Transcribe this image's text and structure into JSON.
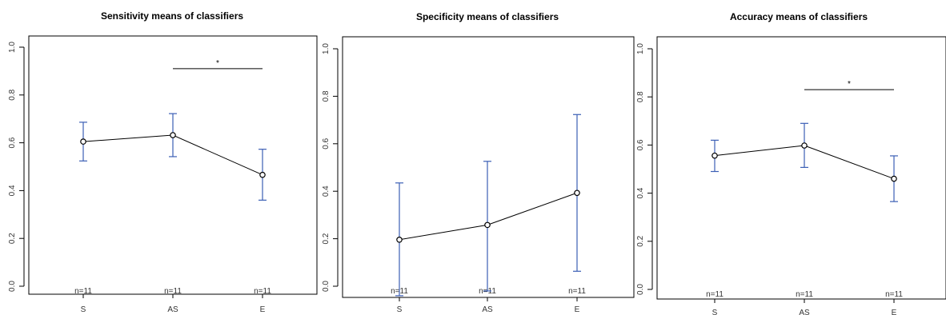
{
  "chart_data": [
    {
      "type": "line",
      "title": "Sensitivity means of classifiers",
      "categories": [
        "S",
        "AS",
        "E"
      ],
      "means": [
        0.605,
        0.632,
        0.466
      ],
      "lower": [
        0.524,
        0.542,
        0.36
      ],
      "upper": [
        0.686,
        0.722,
        0.573
      ],
      "n_labels": [
        "n=11",
        "n=11",
        "n=11"
      ],
      "ylim": [
        0.0,
        1.0
      ],
      "yticks": [
        0.0,
        0.2,
        0.4,
        0.6,
        0.8,
        1.0
      ],
      "ytick_labels": [
        "0.0",
        "0.2",
        "0.4",
        "0.6",
        "0.8",
        "1.0"
      ],
      "significance": {
        "from": "AS",
        "to": "E",
        "y": 0.91,
        "label": "*"
      }
    },
    {
      "type": "line",
      "title": "Specificity means of classifiers",
      "categories": [
        "S",
        "AS",
        "E"
      ],
      "means": [
        0.196,
        0.258,
        0.393
      ],
      "lower": [
        -0.04,
        -0.02,
        0.063
      ],
      "upper": [
        0.435,
        0.526,
        0.723
      ],
      "n_labels": [
        "n=11",
        "n=11",
        "n=11"
      ],
      "ylim": [
        0.0,
        1.0
      ],
      "yticks": [
        0.0,
        0.2,
        0.4,
        0.6,
        0.8,
        1.0
      ],
      "ytick_labels": [
        "0.0",
        "0.2",
        "0.4",
        "0.6",
        "0.8",
        "1.0"
      ]
    },
    {
      "type": "line",
      "title": "Accuracy means of classifiers",
      "categories": [
        "S",
        "AS",
        "E"
      ],
      "means": [
        0.556,
        0.598,
        0.46
      ],
      "lower": [
        0.49,
        0.507,
        0.365
      ],
      "upper": [
        0.62,
        0.69,
        0.555
      ],
      "n_labels": [
        "n=11",
        "n=11",
        "n=11"
      ],
      "ylim": [
        0.0,
        1.0
      ],
      "yticks": [
        0.0,
        0.2,
        0.4,
        0.6,
        0.8,
        1.0
      ],
      "ytick_labels": [
        "0.0",
        "0.2",
        "0.4",
        "0.6",
        "0.8",
        "1.0"
      ],
      "significance": {
        "from": "AS",
        "to": "E",
        "y": 0.83,
        "label": "*"
      }
    }
  ]
}
